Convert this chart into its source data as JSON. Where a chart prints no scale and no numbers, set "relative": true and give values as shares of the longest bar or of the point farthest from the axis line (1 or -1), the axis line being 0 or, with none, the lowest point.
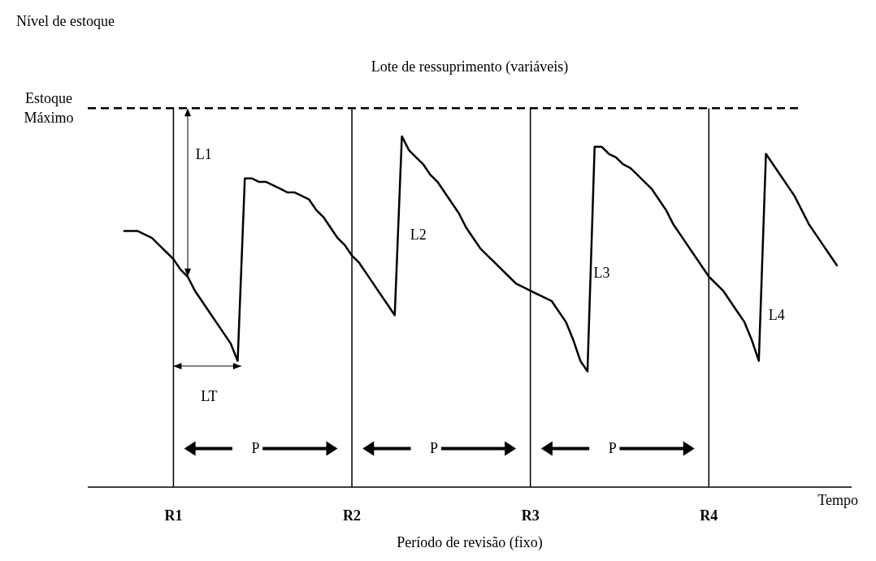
{
  "chart_data": {
    "type": "line",
    "relative": true,
    "xlabel": "Tempo",
    "categories": [
      null,
      null,
      null,
      null,
      null,
      null,
      null,
      null,
      null,
      null,
      null,
      null,
      "R1",
      null,
      null,
      null,
      null,
      null,
      null,
      null,
      null,
      null,
      null,
      null,
      null,
      null,
      null,
      null,
      null,
      null,
      null,
      null,
      null,
      null,
      null,
      null,
      null,
      "R2",
      null,
      null,
      null,
      null,
      null,
      null,
      null,
      null,
      null,
      null,
      null,
      null,
      null,
      null,
      null,
      null,
      null,
      null,
      null,
      null,
      null,
      null,
      null,
      null,
      "R3",
      null,
      null,
      null,
      null,
      null,
      null,
      null,
      null,
      null,
      null,
      null,
      null,
      null,
      null,
      null,
      null,
      null,
      null,
      null,
      null,
      null,
      null,
      null,
      null,
      "R4",
      null,
      null,
      null,
      null,
      null,
      null,
      null,
      null,
      null,
      null,
      null,
      null,
      null,
      null,
      null,
      null,
      null,
      null,
      null,
      null
    ],
    "series": [
      {
        "color": "#000000",
        "values": [
          null,
          null,
          null,
          null,
          null,
          0.73,
          0.73,
          0.73,
          0.72,
          0.71,
          0.69,
          0.67,
          0.65,
          0.62,
          0.6,
          0.56,
          0.53,
          0.5,
          0.47,
          0.44,
          0.41,
          0.36,
          0.88,
          0.88,
          0.87,
          0.87,
          0.86,
          0.85,
          0.84,
          0.84,
          0.83,
          0.82,
          0.79,
          0.77,
          0.74,
          0.71,
          0.69,
          0.66,
          0.64,
          0.61,
          0.58,
          0.55,
          0.52,
          0.49,
          1.0,
          0.96,
          0.94,
          0.92,
          0.89,
          0.87,
          0.84,
          0.81,
          0.78,
          0.74,
          0.71,
          0.68,
          0.66,
          0.64,
          0.62,
          0.6,
          0.58,
          0.57,
          0.56,
          0.55,
          0.54,
          0.53,
          0.5,
          0.47,
          0.42,
          0.36,
          0.33,
          0.97,
          0.97,
          0.95,
          0.94,
          0.92,
          0.91,
          0.89,
          0.87,
          0.85,
          0.82,
          0.79,
          0.75,
          0.72,
          0.69,
          0.66,
          0.63,
          0.6,
          0.58,
          0.56,
          0.53,
          0.5,
          0.47,
          0.42,
          0.36,
          0.95,
          0.92,
          0.89,
          0.86,
          0.83,
          0.79,
          0.75,
          0.72,
          0.69,
          0.66,
          0.63,
          null,
          null
        ]
      }
    ],
    "line_style": "solid",
    "grid": false,
    "legend": false,
    "ref_lines": [
      {
        "axis": "y",
        "value": 1.08,
        "label": "Estoque Máximo",
        "line_style": "dashed",
        "color": "#000000"
      },
      {
        "axis": "x",
        "value": "R1",
        "color": "#000000"
      },
      {
        "axis": "x",
        "value": "R2",
        "color": "#000000"
      },
      {
        "axis": "x",
        "value": "R3",
        "color": "#000000"
      },
      {
        "axis": "x",
        "value": "R4",
        "color": "#000000"
      }
    ],
    "annotations": [
      "Nível de estoque",
      "Lote de ressuprimento (variáveis)",
      "Período de revisão (fixo)",
      "L1",
      "LT",
      "P",
      "L2",
      "P",
      "L3",
      "P",
      "L4"
    ]
  }
}
